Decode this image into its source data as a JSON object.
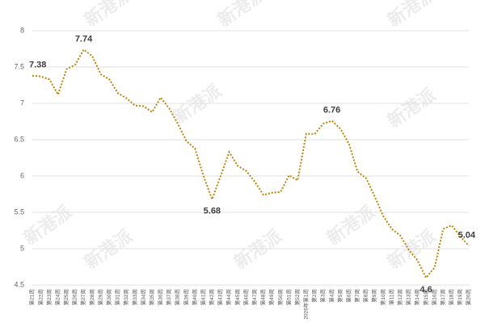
{
  "chart_data": {
    "type": "line",
    "watermark": "新港派",
    "categories": [
      "第21周",
      "第22周",
      "第23周",
      "第24周",
      "第25周",
      "第26周",
      "第27周",
      "第28周",
      "第29周",
      "第30周",
      "第31周",
      "第32周",
      "第33周",
      "第34周",
      "第35周",
      "第36周",
      "第37周",
      "第38周",
      "第39周",
      "第40周",
      "第41周",
      "第42周",
      "第43周",
      "第44周",
      "第45周",
      "第46周",
      "第47周",
      "第48周",
      "第49周",
      "第50周",
      "第51周",
      "第52周",
      "2026年第1周",
      "第2周",
      "第3周",
      "第4周",
      "第5周",
      "第6周",
      "第7周",
      "第8周",
      "第9周",
      "第10周",
      "第11周",
      "第12周",
      "第13周",
      "第14周",
      "第15周",
      "第16周",
      "第17周",
      "第18周",
      "第19周",
      "第20周"
    ],
    "values": [
      7.38,
      7.37,
      7.33,
      7.12,
      7.47,
      7.53,
      7.74,
      7.65,
      7.4,
      7.33,
      7.14,
      7.07,
      6.97,
      6.96,
      6.88,
      7.08,
      6.93,
      6.72,
      6.48,
      6.38,
      6.0,
      5.68,
      6.0,
      6.33,
      6.14,
      6.07,
      5.92,
      5.74,
      5.77,
      5.78,
      6.01,
      5.94,
      6.58,
      6.58,
      6.72,
      6.76,
      6.65,
      6.44,
      6.06,
      5.97,
      5.72,
      5.45,
      5.27,
      5.18,
      4.98,
      4.84,
      4.6,
      4.74,
      5.27,
      5.32,
      5.17,
      5.04
    ],
    "value_labels": [
      "7.38",
      null,
      null,
      null,
      null,
      null,
      "7.74",
      null,
      null,
      null,
      null,
      null,
      null,
      null,
      null,
      null,
      null,
      null,
      null,
      null,
      null,
      "5.68",
      null,
      null,
      null,
      null,
      null,
      null,
      null,
      null,
      null,
      null,
      null,
      null,
      null,
      "6.76",
      null,
      null,
      null,
      null,
      null,
      null,
      null,
      null,
      null,
      null,
      "4.6",
      null,
      null,
      null,
      null,
      "5.04"
    ],
    "color": "#b8860b",
    "ylim": [
      4.5,
      8
    ],
    "yticks": [
      4.5,
      5,
      5.5,
      6,
      6.5,
      7,
      7.5,
      8
    ],
    "grid": true
  }
}
